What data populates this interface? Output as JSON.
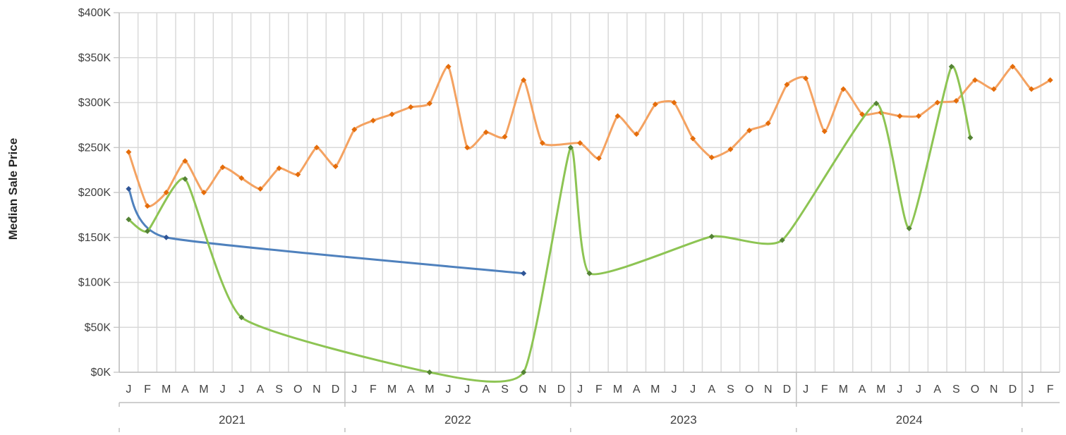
{
  "chart_data": {
    "type": "line",
    "ylabel": "Median Sale Price",
    "ylim": [
      0,
      400000
    ],
    "yticks": [
      {
        "value": 0,
        "label": "$0K"
      },
      {
        "value": 50000,
        "label": "$50K"
      },
      {
        "value": 100000,
        "label": "$100K"
      },
      {
        "value": 150000,
        "label": "$150K"
      },
      {
        "value": 200000,
        "label": "$200K"
      },
      {
        "value": 250000,
        "label": "$250K"
      },
      {
        "value": 300000,
        "label": "$300K"
      },
      {
        "value": 350000,
        "label": "$350K"
      },
      {
        "value": 400000,
        "label": "$400K"
      }
    ],
    "x_months": [
      "J",
      "F",
      "M",
      "A",
      "M",
      "J",
      "J",
      "A",
      "S",
      "O",
      "N",
      "D",
      "J",
      "F",
      "M",
      "A",
      "M",
      "J",
      "J",
      "A",
      "S",
      "O",
      "N",
      "D",
      "J",
      "F",
      "M",
      "A",
      "M",
      "J",
      "J",
      "A",
      "S",
      "O",
      "N",
      "D",
      "J",
      "F",
      "M",
      "A",
      "M",
      "J",
      "J",
      "A",
      "S",
      "O",
      "N",
      "D",
      "J",
      "F"
    ],
    "x_years": [
      {
        "label": "2021",
        "start": 0,
        "end": 11
      },
      {
        "label": "2022",
        "start": 12,
        "end": 23
      },
      {
        "label": "2023",
        "start": 24,
        "end": 35
      },
      {
        "label": "2024",
        "start": 36,
        "end": 47
      }
    ],
    "grid": true,
    "colors": {
      "orange": "#ED7D31",
      "blue": "#4472C4",
      "green": "#70AD47"
    },
    "series": [
      {
        "color": "orange",
        "points": [
          [
            0,
            245000
          ],
          [
            1,
            185000
          ],
          [
            2,
            200000
          ],
          [
            3,
            235000
          ],
          [
            4,
            200000
          ],
          [
            5,
            228000
          ],
          [
            6,
            216000
          ],
          [
            7,
            204000
          ],
          [
            8,
            227000
          ],
          [
            9,
            220000
          ],
          [
            10,
            250000
          ],
          [
            11,
            229000
          ],
          [
            12,
            270000
          ],
          [
            13,
            280000
          ],
          [
            14,
            287000
          ],
          [
            15,
            295000
          ],
          [
            16,
            299000
          ],
          [
            17,
            340000
          ],
          [
            18,
            250000
          ],
          [
            19,
            267000
          ],
          [
            20,
            262000
          ],
          [
            21,
            325000
          ],
          [
            22,
            255000
          ],
          [
            24,
            255000
          ],
          [
            25,
            238000
          ],
          [
            26,
            285000
          ],
          [
            27,
            265000
          ],
          [
            28,
            298000
          ],
          [
            29,
            300000
          ],
          [
            30,
            260000
          ],
          [
            31,
            239000
          ],
          [
            32,
            248000
          ],
          [
            33,
            269000
          ],
          [
            34,
            277000
          ],
          [
            35,
            320000
          ],
          [
            36,
            327000
          ],
          [
            37,
            268000
          ],
          [
            38,
            315000
          ],
          [
            39,
            287000
          ],
          [
            40,
            289000
          ],
          [
            41,
            285000
          ],
          [
            42,
            285000
          ],
          [
            43,
            300000
          ],
          [
            44,
            302000
          ],
          [
            45,
            325000
          ],
          [
            46,
            315000
          ],
          [
            47,
            340000
          ],
          [
            48,
            315000
          ],
          [
            49,
            325000
          ]
        ]
      },
      {
        "color": "blue",
        "points": [
          [
            0,
            204000
          ],
          [
            2,
            150000
          ],
          [
            21,
            110000
          ]
        ]
      },
      {
        "color": "green",
        "points": [
          [
            0,
            170000
          ],
          [
            1,
            157000
          ],
          [
            3,
            215000
          ],
          [
            6,
            61000
          ],
          [
            16,
            0
          ],
          [
            21,
            0
          ],
          [
            23.5,
            250000
          ],
          [
            24.5,
            110000
          ],
          [
            31,
            151000
          ],
          [
            34.75,
            147000
          ],
          [
            39.75,
            299000
          ],
          [
            41.5,
            160000
          ],
          [
            43.75,
            340000
          ],
          [
            44.75,
            261000
          ]
        ]
      }
    ]
  }
}
